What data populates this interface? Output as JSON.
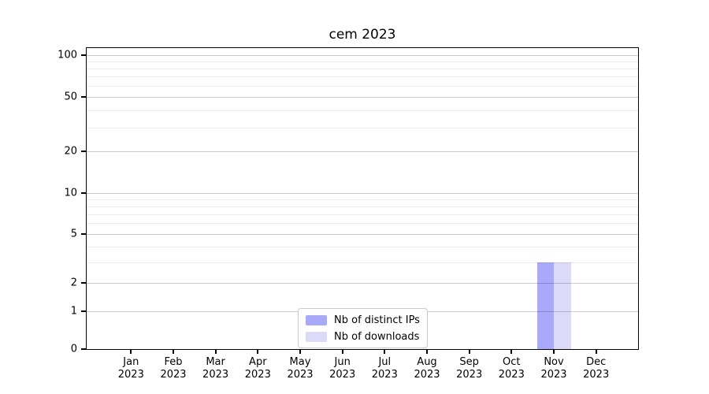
{
  "chart_data": {
    "type": "bar",
    "title": "cem 2023",
    "x_tick_months": [
      "Jan",
      "Feb",
      "Mar",
      "Apr",
      "May",
      "Jun",
      "Jul",
      "Aug",
      "Sep",
      "Oct",
      "Nov",
      "Dec"
    ],
    "x_tick_year": "2023",
    "series": [
      {
        "name": "Nb of distinct IPs",
        "color": "#a9a9fa",
        "values": [
          0,
          0,
          0,
          0,
          0,
          0,
          0,
          0,
          0,
          0,
          3,
          0
        ]
      },
      {
        "name": "Nb of downloads",
        "color": "#dbdbf9",
        "values": [
          0,
          0,
          0,
          0,
          0,
          0,
          0,
          0,
          0,
          0,
          3,
          0
        ]
      }
    ],
    "y_major_ticks": [
      0,
      1,
      2,
      5,
      10,
      20,
      50,
      100
    ],
    "y_minor_ticks": [
      3,
      4,
      6,
      7,
      8,
      9,
      30,
      40,
      60,
      70,
      80,
      90
    ],
    "y_scale": "asinh",
    "ylim": [
      0,
      112
    ],
    "xlabel": "",
    "ylabel": "",
    "grid": "horizontal",
    "legend": {
      "position": "lower center"
    }
  }
}
